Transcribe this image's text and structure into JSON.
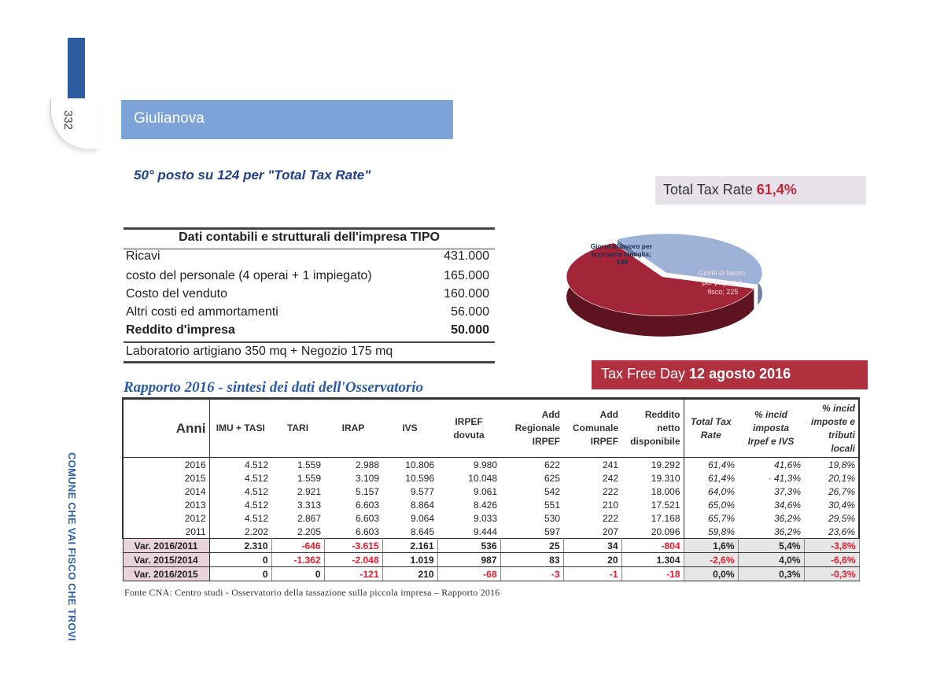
{
  "page_number": "332",
  "side_slogan": "COMUNE CHE VAI FISCO CHE TROVI",
  "city": "Giulianova",
  "rank_heading": "50° posto su 124 per \"Total Tax Rate\"",
  "total_tax_rate": {
    "label": "Total Tax Rate ",
    "value": "61,4%"
  },
  "company": {
    "title": "Dati contabili e strutturali dell'impresa TIPO",
    "rows": [
      {
        "label": "Ricavi",
        "value": "431.000"
      },
      {
        "label": "costo del personale (4 operai + 1 impiegato)",
        "value": "165.000"
      },
      {
        "label": "Costo del venduto",
        "value": "160.000"
      },
      {
        "label": "Altri costi ed ammortamenti",
        "value": "56.000"
      },
      {
        "label": "Reddito d'impresa",
        "value": "50.000"
      }
    ],
    "note": "Laboratorio artigiano 350 mq + Negozio 175 mq"
  },
  "chart_data": {
    "type": "pie",
    "slices": [
      {
        "label": "Giorni di lavoro per la propria famiglia; 140",
        "value": 140,
        "color": "#9db2d6"
      },
      {
        "label": "Giorni di lavoro per pagare il fisco; 225",
        "value": 225,
        "color": "#a32638"
      }
    ],
    "label_family": [
      "Giorni di lavoro per",
      "la propria famiglia;",
      "140"
    ],
    "label_fisco": [
      "Giorni di lavoro",
      "per pagare il",
      "fisco; 225"
    ]
  },
  "tax_free_day": {
    "label": "Tax Free Day ",
    "date": "12 agosto ",
    "year": "2016"
  },
  "report_title": "Rapporto 2016 - sintesi dei dati dell'Osservatorio",
  "table": {
    "headers": {
      "anni": "Anni",
      "imu": "IMU + TASI",
      "tari": "TARI",
      "irap": "IRAP",
      "ivs": "IVS",
      "irpef": [
        "IRPEF",
        "dovuta"
      ],
      "add_reg": [
        "Add",
        "Regionale",
        "IRPEF"
      ],
      "add_com": [
        "Add",
        "Comunale",
        "IRPEF"
      ],
      "reddito": [
        "Reddito",
        "netto",
        "disponibile"
      ],
      "ttr": [
        "Total Tax",
        "Rate"
      ],
      "incid_irpef": [
        "% incid",
        "imposta",
        "Irpef e IVS"
      ],
      "incid_locali": [
        "% incid",
        "imposte e",
        "tributi",
        "locali"
      ]
    },
    "rows": [
      [
        "2016",
        "4.512",
        "1.559",
        "2.988",
        "10.806",
        "9.980",
        "622",
        "241",
        "19.292",
        "61,4%",
        "41,6%",
        "19,8%"
      ],
      [
        "2015",
        "4.512",
        "1.559",
        "3.109",
        "10.596",
        "10.048",
        "625",
        "242",
        "19.310",
        "61,4%",
        "· 41,3%",
        "20,1%"
      ],
      [
        "2014",
        "4.512",
        "2.921",
        "5.157",
        "9.577",
        "9.061",
        "542",
        "222",
        "18.006",
        "64,0%",
        "37,3%",
        "26,7%"
      ],
      [
        "2013",
        "4.512",
        "3.313",
        "6.603",
        "8.864",
        "8.426",
        "551",
        "210",
        "17.521",
        "65,0%",
        "34,6%",
        "30,4%"
      ],
      [
        "2012",
        "4.512",
        "2.867",
        "6.603",
        "9.064",
        "9.033",
        "530",
        "222",
        "17.168",
        "65,7%",
        "36,2%",
        "29,5%"
      ],
      [
        "2011",
        "2.202",
        "2.205",
        "6.603",
        "8.645",
        "9.444",
        "597",
        "207",
        "20.096",
        "59,8%",
        "36,2%",
        "23,6%"
      ]
    ],
    "variations": [
      [
        "Var. 2016/2011",
        "2.310",
        "-646",
        "-3.615",
        "2.161",
        "536",
        "25",
        "34",
        "-804",
        "1,6%",
        "5,4%",
        "-3,8%"
      ],
      [
        "Var. 2015/2014",
        "0",
        "-1.362",
        "-2.048",
        "1.019",
        "987",
        "83",
        "20",
        "1.304",
        "-2,6%",
        "4,0%",
        "-6,6%"
      ],
      [
        "Var. 2016/2015",
        "0",
        "0",
        "-121",
        "210",
        "-68",
        "-3",
        "-1",
        "-18",
        "0,0%",
        "0,3%",
        "-0,3%"
      ]
    ]
  },
  "source": "Fonte CNA: Centro studi - Osservatorio della tassazione sulla piccola impresa – Rapporto 2016"
}
